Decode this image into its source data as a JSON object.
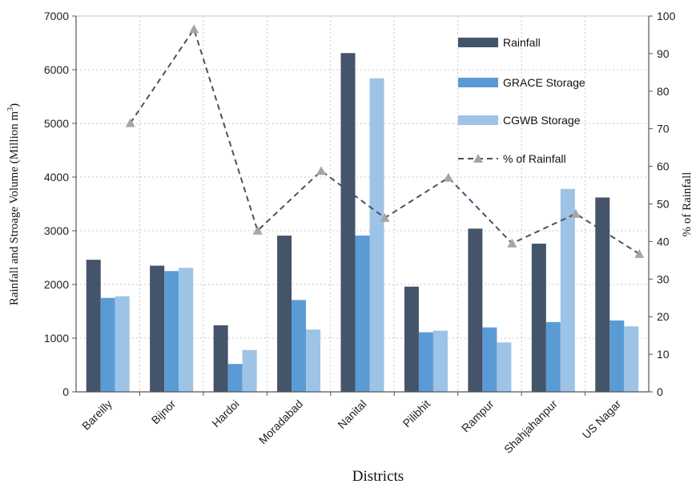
{
  "chart_data": {
    "type": "bar",
    "categories": [
      "Bareilly",
      "Bijnor",
      "Hardoi",
      "Moradabad",
      "Nanital",
      "Pilibhit",
      "Rampur",
      "Shahjahanpur",
      "US Nagar"
    ],
    "series": [
      {
        "name": "Rainfall",
        "axis": "left",
        "kind": "bar",
        "color": "#44546a",
        "values": [
          2460,
          2350,
          1240,
          2910,
          6310,
          1960,
          3040,
          2760,
          3620
        ]
      },
      {
        "name": "GRACE Storage",
        "axis": "left",
        "kind": "bar",
        "color": "#5b9bd5",
        "values": [
          1750,
          2250,
          520,
          1710,
          2910,
          1110,
          1200,
          1300,
          1330
        ]
      },
      {
        "name": "CGWB Storage",
        "axis": "left",
        "kind": "bar",
        "color": "#9dc3e6",
        "values": [
          1780,
          2310,
          780,
          1160,
          5840,
          1140,
          920,
          3780,
          1220
        ]
      },
      {
        "name": "% of Rainfall",
        "axis": "right",
        "kind": "line",
        "color": "#44546a",
        "marker_color": "#a6a6a6",
        "values": [
          71.5,
          96.5,
          42.9,
          58.8,
          46.3,
          57.0,
          39.5,
          47.4,
          36.7
        ]
      }
    ],
    "xlabel": "Districts",
    "ylabel": "Rainfall and Stroage Volume (Million m",
    "ylabel_sup": "3",
    "ylabel_close": ")",
    "y2label": "% of Rainfall",
    "ylim": [
      0,
      7000
    ],
    "y2lim": [
      0,
      100
    ],
    "yticks": [
      "0",
      "1000",
      "2000",
      "3000",
      "4000",
      "5000",
      "6000",
      "7000"
    ],
    "y2ticks": [
      "0",
      "10",
      "20",
      "30",
      "40",
      "50",
      "60",
      "70",
      "80",
      "90",
      "100"
    ],
    "grid": "dotted",
    "legend_position": "top-right"
  }
}
